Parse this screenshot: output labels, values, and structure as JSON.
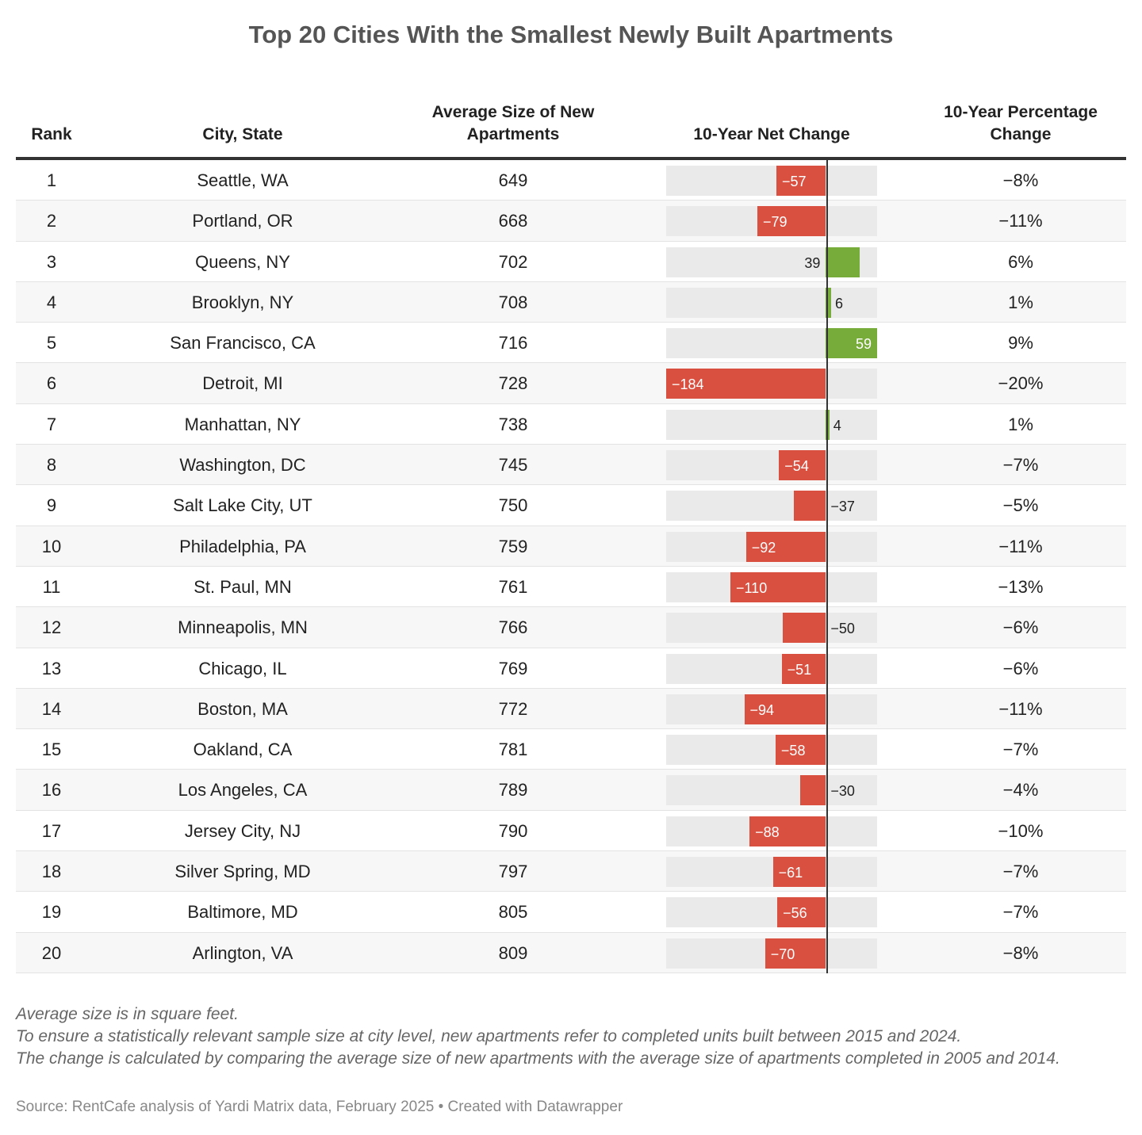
{
  "title": "Top 20 Cities With the Smallest Newly Built Apartments",
  "colors": {
    "negative": "#d95040",
    "positive": "#77ab3a",
    "bar_background": "#eaeaea"
  },
  "chart_data": {
    "type": "table",
    "title": "Top 20 Cities With the Smallest Newly Built Apartments",
    "columns": [
      "Rank",
      "City, State",
      "Average Size of New Apartments",
      "10-Year Net Change",
      "10-Year Percentage Change"
    ],
    "bar_column": "10-Year Net Change",
    "bar_range": [
      -184,
      59
    ],
    "rows": [
      {
        "rank": "1",
        "city": "Seattle, WA",
        "size": "649",
        "change": -57,
        "change_label": "−57",
        "pct": "−8%"
      },
      {
        "rank": "2",
        "city": "Portland, OR",
        "size": "668",
        "change": -79,
        "change_label": "−79",
        "pct": "−11%"
      },
      {
        "rank": "3",
        "city": "Queens, NY",
        "size": "702",
        "change": 39,
        "change_label": "39",
        "pct": "6%"
      },
      {
        "rank": "4",
        "city": "Brooklyn, NY",
        "size": "708",
        "change": 6,
        "change_label": "6",
        "pct": "1%"
      },
      {
        "rank": "5",
        "city": "San Francisco, CA",
        "size": "716",
        "change": 59,
        "change_label": "59",
        "pct": "9%"
      },
      {
        "rank": "6",
        "city": "Detroit, MI",
        "size": "728",
        "change": -184,
        "change_label": "−184",
        "pct": "−20%"
      },
      {
        "rank": "7",
        "city": "Manhattan, NY",
        "size": "738",
        "change": 4,
        "change_label": "4",
        "pct": "1%"
      },
      {
        "rank": "8",
        "city": "Washington, DC",
        "size": "745",
        "change": -54,
        "change_label": "−54",
        "pct": "−7%"
      },
      {
        "rank": "9",
        "city": "Salt Lake City, UT",
        "size": "750",
        "change": -37,
        "change_label": "−37",
        "pct": "−5%"
      },
      {
        "rank": "10",
        "city": "Philadelphia, PA",
        "size": "759",
        "change": -92,
        "change_label": "−92",
        "pct": "−11%"
      },
      {
        "rank": "11",
        "city": "St. Paul, MN",
        "size": "761",
        "change": -110,
        "change_label": "−110",
        "pct": "−13%"
      },
      {
        "rank": "12",
        "city": "Minneapolis, MN",
        "size": "766",
        "change": -50,
        "change_label": "−50",
        "pct": "−6%"
      },
      {
        "rank": "13",
        "city": "Chicago, IL",
        "size": "769",
        "change": -51,
        "change_label": "−51",
        "pct": "−6%"
      },
      {
        "rank": "14",
        "city": "Boston, MA",
        "size": "772",
        "change": -94,
        "change_label": "−94",
        "pct": "−11%"
      },
      {
        "rank": "15",
        "city": "Oakland, CA",
        "size": "781",
        "change": -58,
        "change_label": "−58",
        "pct": "−7%"
      },
      {
        "rank": "16",
        "city": "Los Angeles, CA",
        "size": "789",
        "change": -30,
        "change_label": "−30",
        "pct": "−4%"
      },
      {
        "rank": "17",
        "city": "Jersey City, NJ",
        "size": "790",
        "change": -88,
        "change_label": "−88",
        "pct": "−10%"
      },
      {
        "rank": "18",
        "city": "Silver Spring, MD",
        "size": "797",
        "change": -61,
        "change_label": "−61",
        "pct": "−7%"
      },
      {
        "rank": "19",
        "city": "Baltimore, MD",
        "size": "805",
        "change": -56,
        "change_label": "−56",
        "pct": "−7%"
      },
      {
        "rank": "20",
        "city": "Arlington, VA",
        "size": "809",
        "change": -70,
        "change_label": "−70",
        "pct": "−8%"
      }
    ]
  },
  "header": {
    "rank": "Rank",
    "city": "City, State",
    "size_line1": "Average Size of New",
    "size_line2": "Apartments",
    "change": "10-Year Net Change",
    "pct_line1": "10-Year Percentage",
    "pct_line2": "Change"
  },
  "notes": [
    "Average size is in square feet.",
    "To ensure a statistically relevant sample size at city level, new apartments refer to completed units built between 2015 and 2024.",
    "The change is calculated by comparing the average size of new apartments with the average size of apartments completed in 2005 and 2014."
  ],
  "source": "Source: RentCafe analysis of Yardi Matrix data, February 2025 • Created with Datawrapper"
}
